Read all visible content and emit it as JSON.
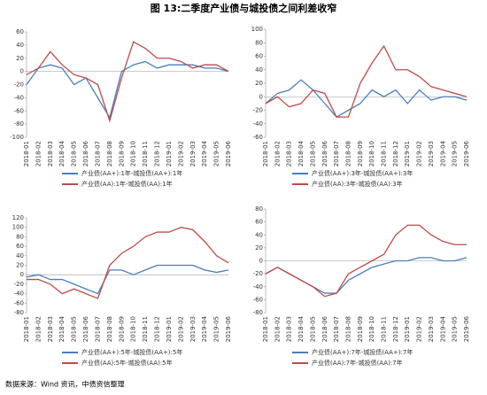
{
  "title": "图 13:二季度产业债与城投债之间利差收窄",
  "source": "数据来源：Wind 资讯，中债资信整理",
  "chart_data": [
    {
      "type": "line",
      "legend": "bottom",
      "grid": false,
      "categories": [
        "2018-01",
        "2018-02",
        "2018-03",
        "2018-04",
        "2018-05",
        "2018-06",
        "2018-07",
        "2018-08",
        "2018-09",
        "2018-10",
        "2018-11",
        "2018-12",
        "2019-01",
        "2019-02",
        "2019-03",
        "2019-04",
        "2019-05",
        "2019-06"
      ],
      "ylim": [
        -100,
        60
      ],
      "yticks": [
        -100,
        -80,
        -60,
        -40,
        -20,
        0,
        20,
        40,
        60
      ],
      "series": [
        {
          "name": "产业债(AA+):1年-城投债(AA+):1年",
          "color": "#4a7ebb",
          "values": [
            -20,
            5,
            10,
            5,
            -20,
            -10,
            -40,
            -70,
            0,
            10,
            15,
            5,
            10,
            10,
            10,
            5,
            5,
            0
          ]
        },
        {
          "name": "产业债(AA):1年-城投债(AA):1年",
          "color": "#be4b48",
          "values": [
            -5,
            5,
            30,
            10,
            -5,
            -10,
            -20,
            -75,
            -10,
            45,
            35,
            20,
            20,
            15,
            5,
            10,
            10,
            0
          ]
        }
      ]
    },
    {
      "type": "line",
      "legend": "bottom",
      "grid": false,
      "categories": [
        "2018-01",
        "2018-02",
        "2018-03",
        "2018-04",
        "2018-05",
        "2018-06",
        "2018-07",
        "2018-08",
        "2018-09",
        "2018-10",
        "2018-11",
        "2018-12",
        "2019-01",
        "2019-02",
        "2019-03",
        "2019-04",
        "2019-05",
        "2019-06"
      ],
      "ylim": [
        -60,
        100
      ],
      "yticks": [
        -60,
        -40,
        -20,
        0,
        20,
        40,
        60,
        80,
        100
      ],
      "series": [
        {
          "name": "产业债(AA+):3年-城投债(AA+):3年",
          "color": "#4a7ebb",
          "values": [
            -10,
            5,
            10,
            25,
            10,
            -10,
            -30,
            -20,
            -10,
            10,
            0,
            10,
            -10,
            10,
            -5,
            0,
            0,
            -5
          ]
        },
        {
          "name": "产业债(AA):3年-城投债(AA):3年",
          "color": "#be4b48",
          "values": [
            -10,
            0,
            -15,
            -10,
            10,
            5,
            -30,
            -30,
            20,
            50,
            75,
            40,
            40,
            30,
            15,
            10,
            5,
            0
          ]
        }
      ]
    },
    {
      "type": "line",
      "legend": "bottom",
      "grid": false,
      "categories": [
        "2018-01",
        "2018-02",
        "2018-03",
        "2018-04",
        "2018-05",
        "2018-06",
        "2018-07",
        "2018-08",
        "2018-09",
        "2018-10",
        "2018-11",
        "2018-12",
        "2019-01",
        "2019-02",
        "2019-03",
        "2019-04",
        "2019-05",
        "2019-06"
      ],
      "ylim": [
        -80,
        120
      ],
      "yticks": [
        -80,
        -60,
        -40,
        -20,
        0,
        20,
        40,
        60,
        80,
        100,
        120
      ],
      "series": [
        {
          "name": "产业债(AA+):5年-城投债(AA+):5年",
          "color": "#4a7ebb",
          "values": [
            -5,
            0,
            -10,
            -10,
            -20,
            -30,
            -40,
            10,
            10,
            0,
            10,
            20,
            20,
            20,
            20,
            10,
            5,
            10
          ]
        },
        {
          "name": "产业债(AA):5年-城投债(AA):5年",
          "color": "#be4b48",
          "values": [
            -10,
            -10,
            -20,
            -40,
            -30,
            -40,
            -50,
            20,
            45,
            60,
            80,
            90,
            90,
            100,
            95,
            70,
            40,
            25
          ]
        }
      ]
    },
    {
      "type": "line",
      "legend": "bottom",
      "grid": false,
      "categories": [
        "2018-01",
        "2018-02",
        "2018-03",
        "2018-04",
        "2018-05",
        "2018-06",
        "2018-07",
        "2018-08",
        "2018-09",
        "2018-10",
        "2018-11",
        "2018-12",
        "2019-01",
        "2019-02",
        "2019-03",
        "2019-04",
        "2019-05",
        "2019-06"
      ],
      "ylim": [
        -80,
        80
      ],
      "yticks": [
        -80,
        -60,
        -40,
        -20,
        0,
        20,
        40,
        60,
        80
      ],
      "series": [
        {
          "name": "产业债(AA+):7年-城投债(AA+):7年",
          "color": "#4a7ebb",
          "values": [
            -20,
            -10,
            -20,
            -30,
            -40,
            -50,
            -50,
            -30,
            -20,
            -10,
            -5,
            0,
            0,
            5,
            5,
            0,
            0,
            5
          ]
        },
        {
          "name": "产业债(AA):7年-城投债(AA):7年",
          "color": "#be4b48",
          "values": [
            -20,
            -10,
            -20,
            -30,
            -40,
            -55,
            -50,
            -20,
            -10,
            0,
            10,
            40,
            55,
            55,
            40,
            30,
            25,
            25
          ]
        }
      ]
    }
  ]
}
